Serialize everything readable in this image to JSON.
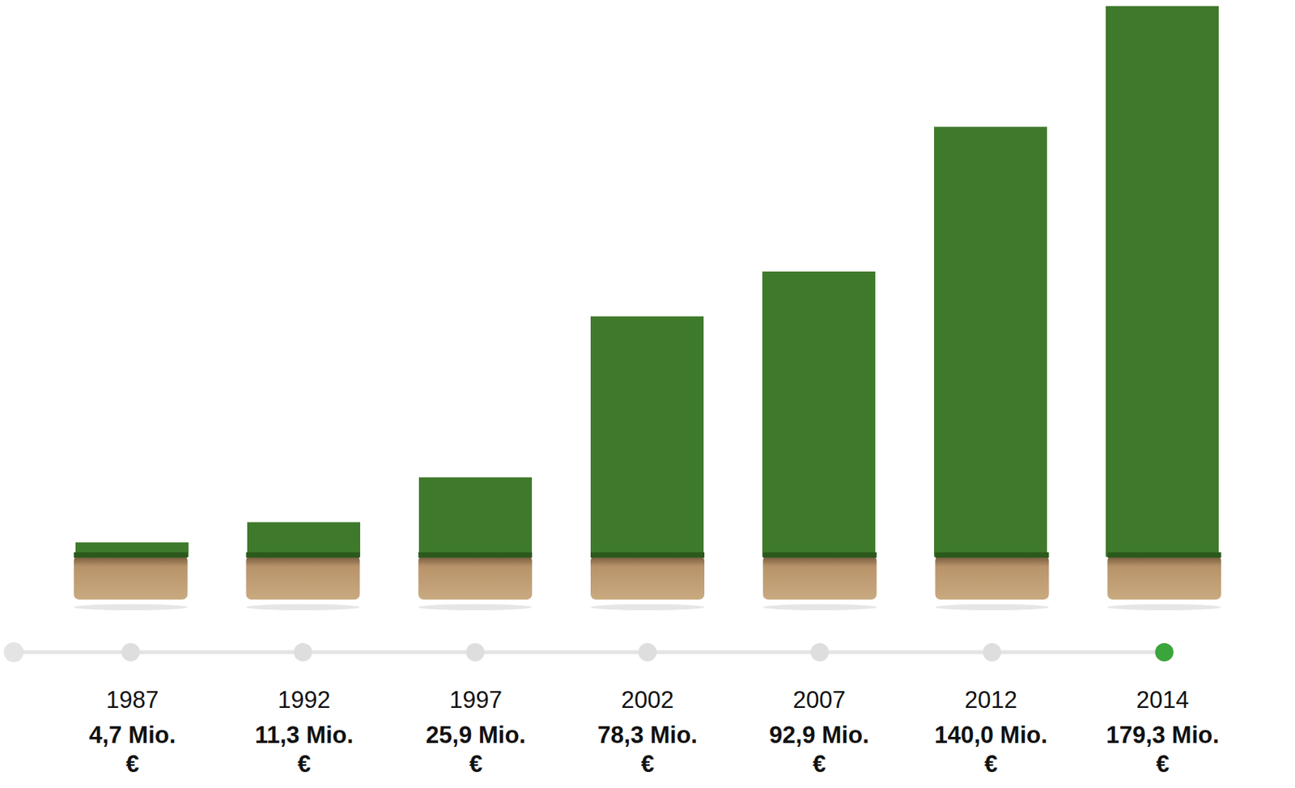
{
  "chart_data": {
    "type": "bar",
    "categories": [
      "1987",
      "1992",
      "1997",
      "2002",
      "2007",
      "2012",
      "2014"
    ],
    "values": [
      4.7,
      11.3,
      25.9,
      78.3,
      92.9,
      140.0,
      179.3
    ],
    "value_labels": [
      "4,7 Mio. €",
      "11,3 Mio. €",
      "25,9 Mio. €",
      "78,3 Mio. €",
      "92,9 Mio. €",
      "140,0 Mio. €",
      "179,3 Mio. €"
    ],
    "data_labels": true,
    "color": "#3f7a2c",
    "ylim": [
      0,
      179.3
    ],
    "tick_labels": "x",
    "grid": false
  }
}
